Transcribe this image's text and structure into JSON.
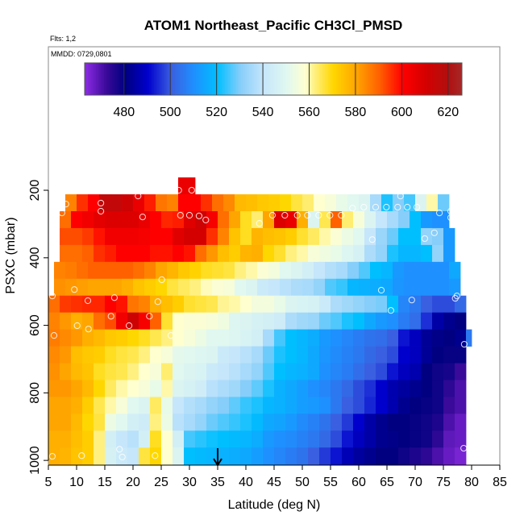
{
  "chart_data": {
    "type": "heatmap",
    "title": "ATOM1 Northeast_Pacific CH3Cl_PMSD",
    "subtitle_flights": "Flts: 1,2",
    "subtitle_dates": "MMDD: 0729,0801",
    "xlabel": "Latitude (deg N)",
    "ylabel": "PSXC (mbar)",
    "xlim": [
      5,
      85
    ],
    "ylim": [
      1014,
      -225
    ],
    "y_reversed": true,
    "xticks": [
      5,
      10,
      15,
      20,
      25,
      30,
      35,
      40,
      45,
      50,
      55,
      60,
      65,
      70,
      75,
      80,
      85
    ],
    "yticks": [
      200,
      400,
      600,
      800,
      1000
    ],
    "colorbar": {
      "range": [
        463,
        626
      ],
      "ticks": [
        480,
        500,
        520,
        540,
        560,
        580,
        600,
        620
      ],
      "stops": [
        [
          463,
          "#8a2be2"
        ],
        [
          472,
          "#3a0a9a"
        ],
        [
          480,
          "#000080"
        ],
        [
          490,
          "#0000cd"
        ],
        [
          500,
          "#3a5fe0"
        ],
        [
          510,
          "#1e90ff"
        ],
        [
          520,
          "#00bfff"
        ],
        [
          530,
          "#87cefa"
        ],
        [
          540,
          "#c6e6fb"
        ],
        [
          550,
          "#e0f8f0"
        ],
        [
          558,
          "#ffffd0"
        ],
        [
          562,
          "#fff080"
        ],
        [
          570,
          "#ffd700"
        ],
        [
          580,
          "#ffa500"
        ],
        [
          590,
          "#ff6000"
        ],
        [
          600,
          "#ff0000"
        ],
        [
          610,
          "#d40000"
        ],
        [
          620,
          "#b01010"
        ],
        [
          626,
          "#a52a2a"
        ]
      ]
    },
    "lat_bin_width": 2,
    "rows": [
      {
        "p": [
          162,
          212
        ],
        "lat": [
          28,
          31
        ],
        "values": [
          605,
          605
        ]
      },
      {
        "p": [
          212,
          262
        ],
        "lat": [
          8,
          76
        ],
        "values": [
          585,
          595,
          600,
          615,
          615,
          612,
          605,
          597,
          587,
          585,
          600,
          600,
          595,
          588,
          584,
          576,
          575,
          573,
          572,
          570,
          566,
          563,
          558,
          556,
          552,
          550,
          548,
          535,
          522,
          530,
          525,
          548,
          560,
          528
        ]
      },
      {
        "p": [
          262,
          312
        ],
        "lat": [
          7,
          76
        ],
        "values": [
          588,
          600,
          603,
          606,
          608,
          608,
          608,
          605,
          600,
          596,
          597,
          607,
          612,
          602,
          588,
          580,
          568,
          563,
          580,
          608,
          605,
          578,
          548,
          565,
          590,
          563,
          556,
          548,
          540,
          535,
          530,
          520,
          512,
          510,
          510
        ]
      },
      {
        "p": [
          312,
          362
        ],
        "lat": [
          7,
          77
        ],
        "values": [
          592,
          592,
          594,
          598,
          603,
          603,
          603,
          602,
          600,
          600,
          607,
          610,
          610,
          595,
          585,
          574,
          568,
          577,
          575,
          574,
          572,
          567,
          564,
          560,
          557,
          553,
          550,
          540,
          533,
          528,
          520,
          520,
          532,
          530,
          512
        ]
      },
      {
        "p": [
          362,
          412
        ],
        "lat": [
          7,
          77
        ],
        "values": [
          588,
          588,
          590,
          595,
          597,
          600,
          600,
          600,
          598,
          598,
          600,
          598,
          588,
          582,
          575,
          572,
          577,
          578,
          570,
          567,
          562,
          560,
          556,
          554,
          552,
          549,
          546,
          536,
          532,
          522,
          518,
          518,
          520,
          532,
          512
        ]
      },
      {
        "p": [
          412,
          462
        ],
        "lat": [
          6,
          78
        ],
        "values": [
          585,
          586,
          588,
          590,
          590,
          590,
          590,
          588,
          585,
          580,
          577,
          573,
          571,
          568,
          567,
          566,
          562,
          560,
          557,
          555,
          550,
          548,
          545,
          540,
          537,
          535,
          530,
          526,
          520,
          518,
          512,
          510,
          510,
          510,
          510,
          515
        ]
      },
      {
        "p": [
          462,
          512
        ],
        "lat": [
          6,
          78
        ],
        "values": [
          583,
          582,
          581,
          580,
          580,
          580,
          578,
          574,
          572,
          570,
          566,
          564,
          562,
          559,
          557,
          556,
          550,
          548,
          542,
          540,
          538,
          536,
          535,
          532,
          526,
          524,
          518,
          517,
          516,
          515,
          511,
          510,
          510,
          510,
          510,
          512
        ]
      },
      {
        "p": [
          512,
          562
        ],
        "lat": [
          5,
          79
        ],
        "values": [
          588,
          594,
          595,
          596,
          596,
          600,
          598,
          587,
          585,
          578,
          575,
          572,
          567,
          566,
          565,
          561,
          560,
          558,
          555,
          555,
          552,
          548,
          547,
          546,
          542,
          536,
          534,
          532,
          530,
          529,
          520,
          508,
          505,
          500,
          498,
          498,
          502
        ]
      },
      {
        "p": [
          562,
          612
        ],
        "lat": [
          5,
          79
        ],
        "values": [
          585,
          582,
          578,
          580,
          588,
          592,
          603,
          612,
          602,
          590,
          567,
          558,
          557,
          557,
          556,
          554,
          549,
          548,
          546,
          545,
          543,
          536,
          534,
          533,
          528,
          526,
          522,
          520,
          515,
          512,
          510,
          506,
          503,
          495,
          485,
          482,
          480
        ]
      },
      {
        "p": [
          612,
          662
        ],
        "lat": [
          5,
          80
        ],
        "values": [
          586,
          584,
          582,
          578,
          576,
          573,
          572,
          570,
          568,
          565,
          562,
          558,
          556,
          553,
          550,
          550,
          549,
          547,
          545,
          535,
          525,
          520,
          518,
          516,
          512,
          510,
          508,
          506,
          504,
          503,
          500,
          492,
          488,
          483,
          481,
          480,
          482,
          505
        ]
      },
      {
        "p": [
          662,
          712
        ],
        "lat": [
          5,
          79
        ],
        "values": [
          584,
          582,
          575,
          573,
          572,
          568,
          566,
          565,
          562,
          558,
          556,
          551,
          550,
          549,
          548,
          542,
          540,
          538,
          535,
          528,
          522,
          520,
          518,
          515,
          511,
          509,
          507,
          505,
          502,
          500,
          498,
          490,
          488,
          483,
          480,
          479,
          479
        ]
      },
      {
        "p": [
          712,
          762
        ],
        "lat": [
          5,
          79
        ],
        "values": [
          583,
          580,
          576,
          574,
          568,
          566,
          565,
          562,
          558,
          556,
          563,
          550,
          548,
          547,
          542,
          540,
          538,
          535,
          532,
          526,
          520,
          518,
          517,
          515,
          510,
          508,
          506,
          503,
          500,
          498,
          492,
          488,
          486,
          480,
          478,
          477,
          472
        ]
      },
      {
        "p": [
          762,
          812
        ],
        "lat": [
          5,
          79
        ],
        "values": [
          582,
          582,
          580,
          576,
          570,
          564,
          560,
          558,
          556,
          552,
          560,
          548,
          546,
          544,
          538,
          536,
          534,
          530,
          527,
          522,
          517,
          515,
          513,
          510,
          508,
          505,
          502,
          498,
          495,
          490,
          486,
          484,
          482,
          480,
          478,
          474,
          470
        ]
      },
      {
        "p": [
          812,
          862
        ],
        "lat": [
          5,
          79
        ],
        "values": [
          580,
          580,
          578,
          572,
          565,
          560,
          556,
          550,
          548,
          564,
          552,
          540,
          537,
          535,
          532,
          530,
          527,
          524,
          522,
          518,
          517,
          515,
          513,
          512,
          510,
          505,
          500,
          498,
          494,
          490,
          486,
          482,
          480,
          479,
          478,
          472,
          470
        ]
      },
      {
        "p": [
          862,
          912
        ],
        "lat": [
          5,
          79
        ],
        "values": [
          580,
          580,
          576,
          570,
          566,
          553,
          550,
          545,
          543,
          562,
          553,
          538,
          535,
          532,
          528,
          526,
          524,
          522,
          519,
          515,
          514,
          512,
          509,
          507,
          504,
          500,
          496,
          490,
          485,
          482,
          480,
          480,
          479,
          478,
          476,
          470,
          467
        ]
      },
      {
        "p": [
          912,
          962
        ],
        "lat": [
          5,
          79
        ],
        "values": [
          578,
          578,
          575,
          572,
          562,
          545,
          540,
          538,
          545,
          568,
          558,
          545,
          525,
          523,
          521,
          520,
          519,
          518,
          516,
          512,
          510,
          509,
          507,
          505,
          502,
          498,
          492,
          488,
          485,
          482,
          481,
          480,
          479,
          478,
          474,
          468,
          467
        ]
      },
      {
        "p": [
          962,
          1012
        ],
        "lat": [
          5,
          79
        ],
        "values": [
          578,
          577,
          574,
          572,
          562,
          546,
          542,
          540,
          566,
          570,
          558,
          548,
          520,
          519,
          518,
          517,
          516,
          515,
          513,
          510,
          508,
          506,
          504,
          500,
          496,
          492,
          487,
          484,
          482,
          480,
          480,
          478,
          476,
          474,
          470,
          467,
          465
        ]
      }
    ],
    "observations": [
      [
        28.1,
        200
      ],
      [
        30.4,
        200
      ],
      [
        8.1,
        241
      ],
      [
        14.3,
        238
      ],
      [
        20.9,
        217
      ],
      [
        14.3,
        262
      ],
      [
        7.4,
        267
      ],
      [
        21.7,
        279
      ],
      [
        28.4,
        274
      ],
      [
        30,
        274
      ],
      [
        31.7,
        276
      ],
      [
        32.9,
        288
      ],
      [
        42.4,
        298
      ],
      [
        44.7,
        274
      ],
      [
        46.9,
        274
      ],
      [
        49.1,
        274
      ],
      [
        50.9,
        274
      ],
      [
        52.9,
        274
      ],
      [
        54.9,
        274
      ],
      [
        56.9,
        274
      ],
      [
        58.9,
        253
      ],
      [
        60.9,
        250
      ],
      [
        63,
        250
      ],
      [
        64.9,
        250
      ],
      [
        66.9,
        250
      ],
      [
        68.6,
        250
      ],
      [
        70.3,
        250
      ],
      [
        67.4,
        217
      ],
      [
        74.3,
        267
      ],
      [
        76.3,
        262
      ],
      [
        76.3,
        281
      ],
      [
        71.7,
        343
      ],
      [
        73.4,
        326
      ],
      [
        62.4,
        346
      ],
      [
        25.1,
        465
      ],
      [
        9.6,
        494
      ],
      [
        64,
        496
      ],
      [
        5.7,
        513
      ],
      [
        12,
        527
      ],
      [
        16.7,
        518
      ],
      [
        24.4,
        530
      ],
      [
        77.4,
        513
      ],
      [
        77.1,
        520
      ],
      [
        69.4,
        525
      ],
      [
        65.7,
        556
      ],
      [
        16.1,
        573
      ],
      [
        22.9,
        573
      ],
      [
        10.1,
        601
      ],
      [
        12.1,
        611
      ],
      [
        19.3,
        601
      ],
      [
        6,
        630
      ],
      [
        26.7,
        630
      ],
      [
        78.7,
        656
      ],
      [
        5.7,
        988
      ],
      [
        10.9,
        986
      ],
      [
        17.6,
        967
      ],
      [
        18.1,
        990
      ],
      [
        23.9,
        986
      ],
      [
        78.6,
        964
      ]
    ],
    "marker_latitude": 35
  }
}
